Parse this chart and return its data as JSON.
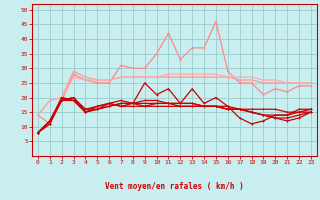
{
  "title": "",
  "xlabel": "Vent moyen/en rafales ( km/h )",
  "xlim": [
    -0.5,
    23.5
  ],
  "ylim": [
    0,
    52
  ],
  "yticks": [
    5,
    10,
    15,
    20,
    25,
    30,
    35,
    40,
    45,
    50
  ],
  "xticks": [
    0,
    1,
    2,
    3,
    4,
    5,
    6,
    7,
    8,
    9,
    10,
    11,
    12,
    13,
    14,
    15,
    16,
    17,
    18,
    19,
    20,
    21,
    22,
    23
  ],
  "bg_color": "#c8eef0",
  "grid_color": "#99cccc",
  "series": [
    {
      "color": "#ff8888",
      "lw": 0.9,
      "x": [
        0,
        1,
        2,
        3,
        4,
        5,
        6,
        7,
        8,
        9,
        10,
        11,
        12,
        13,
        14,
        15,
        16,
        17,
        18,
        19,
        20,
        21,
        22,
        23
      ],
      "y": [
        14,
        11,
        19,
        28,
        26,
        25,
        25,
        31,
        30,
        30,
        35,
        42,
        33,
        37,
        37,
        46,
        29,
        25,
        25,
        21,
        23,
        22,
        24,
        24
      ]
    },
    {
      "color": "#ff9999",
      "lw": 0.9,
      "x": [
        0,
        1,
        2,
        3,
        4,
        5,
        6,
        7,
        8,
        9,
        10,
        11,
        12,
        13,
        14,
        15,
        16,
        17,
        18,
        19,
        20,
        21,
        22,
        23
      ],
      "y": [
        14,
        19,
        20,
        29,
        27,
        26,
        26,
        27,
        27,
        27,
        27,
        27,
        27,
        27,
        27,
        27,
        27,
        26,
        26,
        25,
        25,
        25,
        25,
        25
      ]
    },
    {
      "color": "#ffaaaa",
      "lw": 0.9,
      "x": [
        0,
        1,
        2,
        3,
        4,
        5,
        6,
        7,
        8,
        9,
        10,
        11,
        12,
        13,
        14,
        15,
        16,
        17,
        18,
        19,
        20,
        21,
        22,
        23
      ],
      "y": [
        14,
        19,
        20,
        27,
        26,
        26,
        26,
        27,
        27,
        27,
        27,
        28,
        28,
        28,
        28,
        28,
        27,
        27,
        27,
        26,
        26,
        25,
        25,
        25
      ]
    },
    {
      "color": "#cc0000",
      "lw": 0.9,
      "x": [
        0,
        1,
        2,
        3,
        4,
        5,
        6,
        7,
        8,
        9,
        10,
        11,
        12,
        13,
        14,
        15,
        16,
        17,
        18,
        19,
        20,
        21,
        22,
        23
      ],
      "y": [
        8,
        11,
        20,
        19,
        15,
        16,
        17,
        18,
        18,
        25,
        21,
        23,
        18,
        23,
        18,
        20,
        17,
        13,
        11,
        12,
        14,
        14,
        16,
        16
      ]
    },
    {
      "color": "#cc0000",
      "lw": 0.9,
      "x": [
        0,
        1,
        2,
        3,
        4,
        5,
        6,
        7,
        8,
        9,
        10,
        11,
        12,
        13,
        14,
        15,
        16,
        17,
        18,
        19,
        20,
        21,
        22,
        23
      ],
      "y": [
        8,
        12,
        20,
        19,
        16,
        17,
        18,
        17,
        17,
        17,
        18,
        18,
        18,
        18,
        17,
        17,
        17,
        16,
        16,
        16,
        16,
        15,
        15,
        15
      ]
    },
    {
      "color": "#cc0000",
      "lw": 0.9,
      "x": [
        0,
        1,
        2,
        3,
        4,
        5,
        6,
        7,
        8,
        9,
        10,
        11,
        12,
        13,
        14,
        15,
        16,
        17,
        18,
        19,
        20,
        21,
        22,
        23
      ],
      "y": [
        8,
        12,
        19,
        20,
        15,
        17,
        18,
        19,
        18,
        19,
        19,
        18,
        18,
        18,
        17,
        17,
        16,
        16,
        15,
        14,
        14,
        14,
        15,
        16
      ]
    },
    {
      "color": "#cc0000",
      "lw": 0.9,
      "x": [
        0,
        1,
        2,
        3,
        4,
        5,
        6,
        7,
        8,
        9,
        10,
        11,
        12,
        13,
        14,
        15,
        16,
        17,
        18,
        19,
        20,
        21,
        22,
        23
      ],
      "y": [
        8,
        12,
        19,
        20,
        16,
        16,
        18,
        17,
        18,
        17,
        17,
        17,
        17,
        17,
        17,
        17,
        16,
        16,
        15,
        14,
        13,
        13,
        14,
        15
      ]
    },
    {
      "color": "#cc0000",
      "lw": 0.9,
      "x": [
        0,
        1,
        2,
        3,
        4,
        5,
        6,
        7,
        8,
        9,
        10,
        11,
        12,
        13,
        14,
        15,
        16,
        17,
        18,
        19,
        20,
        21,
        22,
        23
      ],
      "y": [
        8,
        11,
        19,
        19,
        15,
        16,
        17,
        18,
        18,
        18,
        18,
        18,
        17,
        17,
        17,
        17,
        16,
        16,
        15,
        14,
        13,
        12,
        13,
        15
      ]
    }
  ],
  "arrow_chars": [
    "↑",
    "↑",
    "↑",
    "↑",
    "↗",
    "→",
    "→",
    "→",
    "→",
    "→",
    "→",
    "→",
    "↗",
    "↗",
    "↗",
    "↗",
    "↗",
    "↗",
    "↗",
    "↗",
    "↗",
    "↗",
    "→",
    "→"
  ]
}
